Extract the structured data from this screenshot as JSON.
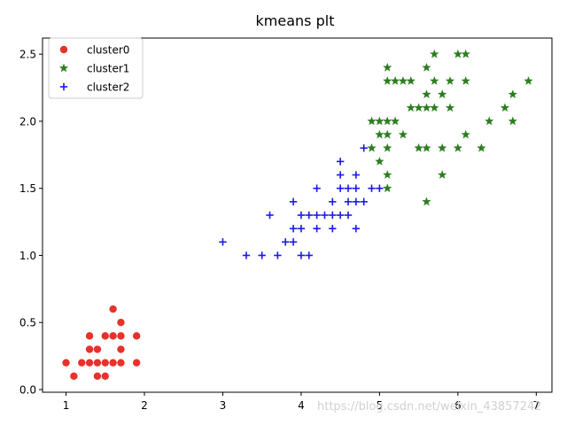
{
  "chart_data": {
    "type": "scatter",
    "title": "kmeans plt",
    "xlabel": "",
    "ylabel": "",
    "xlim": [
      0.7,
      7.2
    ],
    "ylim": [
      -0.02,
      2.62
    ],
    "xticks": [
      1,
      2,
      3,
      4,
      5,
      6,
      7
    ],
    "yticks": [
      0.0,
      0.5,
      1.0,
      1.5,
      2.0,
      2.5
    ],
    "grid": false,
    "legend_position": "top-left",
    "series": [
      {
        "name": "cluster0",
        "marker": "circle",
        "color": "#e8312a",
        "points": [
          [
            1.0,
            0.2
          ],
          [
            1.1,
            0.1
          ],
          [
            1.2,
            0.2
          ],
          [
            1.3,
            0.2
          ],
          [
            1.3,
            0.3
          ],
          [
            1.3,
            0.4
          ],
          [
            1.4,
            0.1
          ],
          [
            1.4,
            0.2
          ],
          [
            1.4,
            0.3
          ],
          [
            1.5,
            0.1
          ],
          [
            1.5,
            0.2
          ],
          [
            1.5,
            0.4
          ],
          [
            1.6,
            0.2
          ],
          [
            1.6,
            0.4
          ],
          [
            1.6,
            0.6
          ],
          [
            1.7,
            0.2
          ],
          [
            1.7,
            0.3
          ],
          [
            1.7,
            0.4
          ],
          [
            1.7,
            0.5
          ],
          [
            1.9,
            0.2
          ],
          [
            1.9,
            0.4
          ]
        ]
      },
      {
        "name": "cluster1",
        "marker": "star",
        "color": "#2e7d22",
        "points": [
          [
            4.9,
            1.8
          ],
          [
            4.9,
            2.0
          ],
          [
            5.0,
            1.7
          ],
          [
            5.0,
            1.9
          ],
          [
            5.0,
            2.0
          ],
          [
            5.1,
            1.5
          ],
          [
            5.1,
            1.6
          ],
          [
            5.1,
            1.8
          ],
          [
            5.1,
            1.9
          ],
          [
            5.1,
            2.0
          ],
          [
            5.1,
            2.3
          ],
          [
            5.1,
            2.4
          ],
          [
            5.2,
            2.0
          ],
          [
            5.2,
            2.3
          ],
          [
            5.3,
            1.9
          ],
          [
            5.3,
            2.3
          ],
          [
            5.4,
            2.1
          ],
          [
            5.4,
            2.3
          ],
          [
            5.5,
            1.8
          ],
          [
            5.5,
            2.1
          ],
          [
            5.6,
            1.4
          ],
          [
            5.6,
            1.8
          ],
          [
            5.6,
            2.1
          ],
          [
            5.6,
            2.2
          ],
          [
            5.6,
            2.4
          ],
          [
            5.7,
            2.1
          ],
          [
            5.7,
            2.3
          ],
          [
            5.7,
            2.5
          ],
          [
            5.8,
            1.6
          ],
          [
            5.8,
            1.8
          ],
          [
            5.8,
            2.2
          ],
          [
            5.9,
            2.1
          ],
          [
            5.9,
            2.3
          ],
          [
            6.0,
            1.8
          ],
          [
            6.0,
            2.5
          ],
          [
            6.1,
            1.9
          ],
          [
            6.1,
            2.3
          ],
          [
            6.1,
            2.5
          ],
          [
            6.3,
            1.8
          ],
          [
            6.4,
            2.0
          ],
          [
            6.6,
            2.1
          ],
          [
            6.7,
            2.0
          ],
          [
            6.7,
            2.2
          ],
          [
            6.9,
            2.3
          ]
        ]
      },
      {
        "name": "cluster2",
        "marker": "plus",
        "color": "#1a1ae6",
        "points": [
          [
            3.0,
            1.1
          ],
          [
            3.3,
            1.0
          ],
          [
            3.5,
            1.0
          ],
          [
            3.6,
            1.3
          ],
          [
            3.7,
            1.0
          ],
          [
            3.8,
            1.1
          ],
          [
            3.9,
            1.1
          ],
          [
            3.9,
            1.2
          ],
          [
            3.9,
            1.4
          ],
          [
            4.0,
            1.0
          ],
          [
            4.0,
            1.2
          ],
          [
            4.0,
            1.3
          ],
          [
            4.1,
            1.0
          ],
          [
            4.1,
            1.3
          ],
          [
            4.2,
            1.2
          ],
          [
            4.2,
            1.3
          ],
          [
            4.2,
            1.5
          ],
          [
            4.3,
            1.3
          ],
          [
            4.4,
            1.2
          ],
          [
            4.4,
            1.3
          ],
          [
            4.4,
            1.4
          ],
          [
            4.5,
            1.3
          ],
          [
            4.5,
            1.5
          ],
          [
            4.5,
            1.6
          ],
          [
            4.5,
            1.7
          ],
          [
            4.6,
            1.3
          ],
          [
            4.6,
            1.4
          ],
          [
            4.6,
            1.5
          ],
          [
            4.7,
            1.2
          ],
          [
            4.7,
            1.4
          ],
          [
            4.7,
            1.5
          ],
          [
            4.7,
            1.6
          ],
          [
            4.8,
            1.4
          ],
          [
            4.8,
            1.8
          ],
          [
            4.9,
            1.5
          ],
          [
            5.0,
            1.5
          ]
        ]
      }
    ]
  },
  "watermark": "https://blog.csdn.net/weixin_43857242"
}
